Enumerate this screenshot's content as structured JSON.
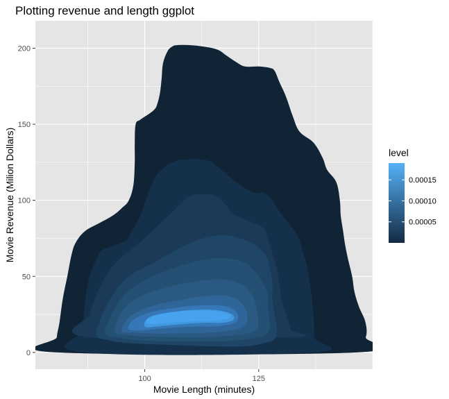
{
  "chart_data": {
    "type": "density_2d_filled",
    "title": "Plotting revenue and length ggplot",
    "xlabel": "Movie Length (minutes)",
    "ylabel": "Movie Revenue (Milion Dollars)",
    "xlim": [
      76,
      150
    ],
    "ylim": [
      -11,
      218
    ],
    "x_ticks": [
      {
        "value": 100,
        "label": "100"
      },
      {
        "value": 125,
        "label": "125"
      }
    ],
    "y_ticks": [
      {
        "value": 0,
        "label": "0"
      },
      {
        "value": 50,
        "label": "50"
      },
      {
        "value": 100,
        "label": "100"
      },
      {
        "value": 150,
        "label": "150"
      },
      {
        "value": 200,
        "label": "200"
      }
    ],
    "grid": true,
    "legend": {
      "title": "level",
      "placement": "right",
      "range": [
        0,
        0.00019
      ],
      "ticks": [
        {
          "value": 5e-05,
          "label": "0.00005"
        },
        {
          "value": 0.0001,
          "label": "0.00010"
        },
        {
          "value": 0.00015,
          "label": "0.00015"
        }
      ],
      "color_low": "#132b43",
      "color_high": "#56b1f7"
    },
    "levels": [
      {
        "level": 1e-05,
        "color": "#112436",
        "contour": [
          [
            80.8,
            0
          ],
          [
            80.7,
            10
          ],
          [
            81.3,
            20
          ],
          [
            82,
            35
          ],
          [
            83,
            50
          ],
          [
            84,
            65
          ],
          [
            85,
            73
          ],
          [
            87,
            80
          ],
          [
            90,
            85
          ],
          [
            93,
            90
          ],
          [
            95,
            95
          ],
          [
            96.5,
            100
          ],
          [
            97.5,
            110
          ],
          [
            97.8,
            125
          ],
          [
            97.8,
            138
          ],
          [
            98,
            150
          ],
          [
            99,
            153
          ],
          [
            101,
            157
          ],
          [
            102.2,
            160
          ],
          [
            102.7,
            163
          ],
          [
            103.3,
            170
          ],
          [
            103.7,
            180
          ],
          [
            104,
            190
          ],
          [
            105,
            198
          ],
          [
            106,
            201
          ],
          [
            107,
            202
          ],
          [
            110,
            202
          ],
          [
            113,
            201
          ],
          [
            116,
            199
          ],
          [
            118,
            195
          ],
          [
            120,
            191
          ],
          [
            122,
            188
          ],
          [
            125,
            188
          ],
          [
            127.5,
            187
          ],
          [
            128.5,
            185
          ],
          [
            129.5,
            178
          ],
          [
            131,
            168
          ],
          [
            132.5,
            155
          ],
          [
            134,
            145
          ],
          [
            137,
            138
          ],
          [
            139,
            128
          ],
          [
            140,
            120
          ],
          [
            142,
            112
          ],
          [
            142.8,
            100
          ],
          [
            143,
            90
          ],
          [
            143.5,
            80
          ],
          [
            144,
            70
          ],
          [
            144.7,
            60
          ],
          [
            145.5,
            50
          ],
          [
            146,
            40
          ],
          [
            147,
            30
          ],
          [
            148.4,
            20
          ],
          [
            148.5,
            10
          ],
          [
            146.5,
            0
          ]
        ]
      },
      {
        "level": 3e-05,
        "color": "#14304b",
        "contour": [
          [
            86.5,
            0
          ],
          [
            86.5,
            15
          ],
          [
            86.8,
            30
          ],
          [
            87.5,
            45
          ],
          [
            88.5,
            55
          ],
          [
            89.5,
            62
          ],
          [
            90.5,
            67
          ],
          [
            93,
            70
          ],
          [
            96,
            74
          ],
          [
            97,
            79
          ],
          [
            98,
            84
          ],
          [
            99,
            90
          ],
          [
            100.2,
            100
          ],
          [
            101.5,
            110
          ],
          [
            103,
            118
          ],
          [
            106,
            125
          ],
          [
            110,
            127
          ],
          [
            114,
            126
          ],
          [
            116,
            122
          ],
          [
            118,
            117
          ],
          [
            120,
            112
          ],
          [
            122,
            108
          ],
          [
            124,
            105
          ],
          [
            126,
            105
          ],
          [
            127,
            103
          ],
          [
            128,
            100
          ],
          [
            129,
            95
          ],
          [
            131,
            87
          ],
          [
            133.5,
            77
          ],
          [
            134.5,
            68
          ],
          [
            135.5,
            58
          ],
          [
            136,
            50
          ],
          [
            136.5,
            40
          ],
          [
            137,
            25
          ],
          [
            137.2,
            10
          ],
          [
            137,
            0
          ]
        ]
      },
      {
        "level": 5e-05,
        "color": "#1a3a58",
        "contour": [
          [
            87.5,
            10
          ],
          [
            88,
            25
          ],
          [
            89,
            35
          ],
          [
            90.5,
            45
          ],
          [
            92.5,
            55
          ],
          [
            95,
            63
          ],
          [
            98,
            70
          ],
          [
            101,
            78
          ],
          [
            104.5,
            88
          ],
          [
            108,
            98
          ],
          [
            110,
            103
          ],
          [
            113,
            104
          ],
          [
            115.5,
            103
          ],
          [
            117.5,
            98
          ],
          [
            119.5,
            91
          ],
          [
            123,
            86
          ],
          [
            126,
            82
          ],
          [
            127,
            75
          ],
          [
            128,
            65
          ],
          [
            129,
            55
          ],
          [
            129.5,
            45
          ],
          [
            130,
            35
          ],
          [
            131,
            25
          ],
          [
            132,
            15
          ],
          [
            132,
            10
          ]
        ]
      },
      {
        "level": 7e-05,
        "color": "#1f4567",
        "contour": [
          [
            89.5,
            11
          ],
          [
            90,
            20
          ],
          [
            91.5,
            30
          ],
          [
            93,
            38
          ],
          [
            95,
            46
          ],
          [
            98,
            53
          ],
          [
            102,
            59
          ],
          [
            106,
            66
          ],
          [
            110,
            72
          ],
          [
            114,
            76
          ],
          [
            118,
            77
          ],
          [
            122,
            74
          ],
          [
            124.5,
            70
          ],
          [
            126.5,
            64
          ],
          [
            127.5,
            55
          ],
          [
            128,
            45
          ],
          [
            128,
            35
          ],
          [
            128.5,
            25
          ],
          [
            129,
            15
          ],
          [
            128.5,
            9
          ],
          [
            126,
            6
          ],
          [
            122,
            4
          ],
          [
            115,
            4
          ],
          [
            105,
            5
          ],
          [
            97,
            6
          ],
          [
            92,
            8
          ]
        ]
      },
      {
        "level": 9e-05,
        "color": "#245074",
        "contour": [
          [
            91.5,
            12
          ],
          [
            92,
            20
          ],
          [
            93.2,
            28
          ],
          [
            95,
            36
          ],
          [
            97.5,
            43
          ],
          [
            101,
            49
          ],
          [
            105,
            54
          ],
          [
            109,
            58
          ],
          [
            113,
            61
          ],
          [
            117,
            62
          ],
          [
            120,
            61
          ],
          [
            122.5,
            58
          ],
          [
            124.5,
            52
          ],
          [
            126,
            45
          ],
          [
            127,
            38
          ],
          [
            127,
            30
          ],
          [
            127.3,
            22
          ],
          [
            127.3,
            15
          ],
          [
            126,
            11
          ],
          [
            123,
            9
          ],
          [
            118,
            7.5
          ],
          [
            110,
            7
          ],
          [
            102,
            7.5
          ],
          [
            96,
            9
          ]
        ]
      },
      {
        "level": 0.00011,
        "color": "#2a5a82",
        "contour": [
          [
            93.5,
            13
          ],
          [
            94,
            20
          ],
          [
            95,
            27
          ],
          [
            97,
            33
          ],
          [
            100,
            38
          ],
          [
            104,
            42
          ],
          [
            108,
            45
          ],
          [
            112,
            47
          ],
          [
            116,
            48
          ],
          [
            119,
            47
          ],
          [
            121.5,
            44
          ],
          [
            123,
            40
          ],
          [
            124,
            35
          ],
          [
            124.5,
            29
          ],
          [
            124.8,
            23
          ],
          [
            124.8,
            17
          ],
          [
            123,
            13
          ],
          [
            119,
            11
          ],
          [
            113,
            10
          ],
          [
            106,
            10
          ],
          [
            100,
            10.5
          ],
          [
            96,
            11.5
          ]
        ]
      },
      {
        "level": 0.00013,
        "color": "#30659a",
        "contour": [
          [
            95,
            14
          ],
          [
            96,
            21
          ],
          [
            98,
            26
          ],
          [
            101,
            30
          ],
          [
            105,
            33
          ],
          [
            109,
            35
          ],
          [
            113,
            37
          ],
          [
            117,
            37.5
          ],
          [
            119.5,
            36
          ],
          [
            121,
            33
          ],
          [
            122,
            29
          ],
          [
            122.5,
            24
          ],
          [
            122.3,
            19
          ],
          [
            121,
            16
          ],
          [
            118,
            14
          ],
          [
            114,
            13
          ],
          [
            108,
            12.5
          ],
          [
            102,
            12.5
          ],
          [
            98,
            13
          ]
        ]
      },
      {
        "level": 0.00015,
        "color": "#3677b8",
        "contour": [
          [
            96.5,
            15
          ],
          [
            97,
            20
          ],
          [
            99,
            24
          ],
          [
            102,
            27
          ],
          [
            106,
            29
          ],
          [
            110,
            30.5
          ],
          [
            114,
            31
          ],
          [
            117.5,
            30.5
          ],
          [
            119.5,
            28
          ],
          [
            120.5,
            24
          ],
          [
            120,
            20
          ],
          [
            118,
            18
          ],
          [
            115,
            17
          ],
          [
            111,
            17
          ],
          [
            107,
            16.5
          ],
          [
            103,
            15.5
          ],
          [
            99.5,
            14.5
          ]
        ]
      },
      {
        "level": 0.00017,
        "color": "#4199e0",
        "contour": [
          [
            100,
            17
          ],
          [
            100.5,
            22
          ],
          [
            103,
            25
          ],
          [
            107,
            27
          ],
          [
            111,
            28
          ],
          [
            115,
            28
          ],
          [
            118,
            26.5
          ],
          [
            119.5,
            24
          ],
          [
            119.2,
            21
          ],
          [
            117,
            19.5
          ],
          [
            113.5,
            19.5
          ],
          [
            110,
            19
          ],
          [
            106,
            18
          ],
          [
            102.5,
            17
          ]
        ]
      },
      {
        "level": 0.00018,
        "color": "#47a2f0",
        "contour": [
          [
            100.5,
            19
          ],
          [
            101,
            23
          ],
          [
            104,
            25.5
          ],
          [
            108,
            27
          ],
          [
            112,
            27.5
          ],
          [
            116,
            27
          ],
          [
            118.5,
            25
          ],
          [
            118.5,
            22.5
          ],
          [
            116,
            21
          ],
          [
            112,
            20.5
          ],
          [
            108,
            20
          ],
          [
            104,
            19
          ]
        ]
      }
    ]
  }
}
